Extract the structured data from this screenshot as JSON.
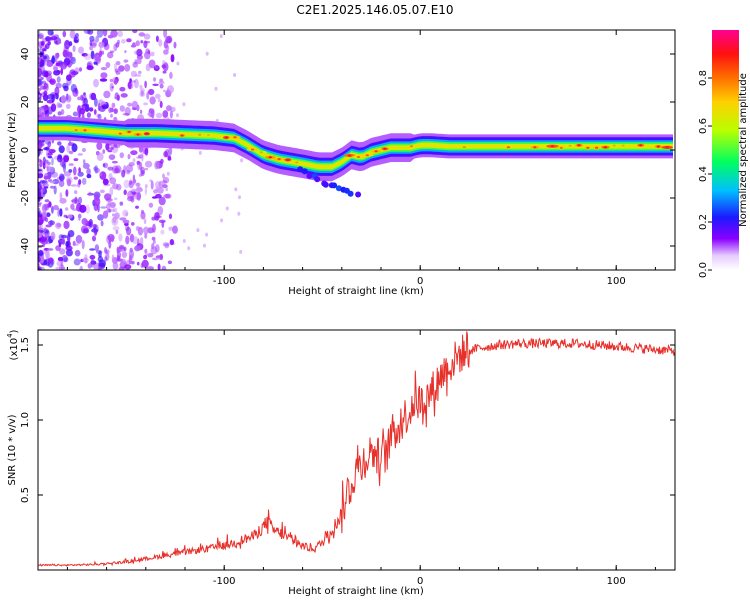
{
  "figure": {
    "title": "C2E1.2025.146.05.07.E10"
  },
  "chart_data": [
    {
      "type": "heatmap",
      "title": "C2E1.2025.146.05.07.E10",
      "xlabel": "Height of straight line (km)",
      "ylabel": "Frequency (Hz)",
      "xlim": [
        -195,
        130
      ],
      "ylim": [
        -50,
        50
      ],
      "xticks": [
        -100,
        0,
        100
      ],
      "yticks": [
        -40,
        -20,
        0,
        20,
        40
      ],
      "ridge": {
        "x": [
          -195,
          -180,
          -165,
          -150,
          -135,
          -120,
          -105,
          -95,
          -88,
          -80,
          -72,
          -65,
          -58,
          -52,
          -45,
          -40,
          -35,
          -30,
          -25,
          -20,
          -15,
          -10,
          -5,
          0,
          5,
          15,
          30,
          50,
          75,
          100,
          130
        ],
        "y": [
          9,
          9,
          8,
          7,
          7,
          6.5,
          6,
          5,
          2,
          -2,
          -4,
          -5,
          -6,
          -7,
          -7,
          -5,
          -2,
          -3,
          -1,
          0,
          1,
          1,
          1,
          2,
          2,
          1.5,
          1.5,
          1.5,
          1.5,
          1.5,
          1.5
        ]
      },
      "colorbar": {
        "label": "Normalized spectral amplitude",
        "range": [
          0,
          1
        ],
        "ticks": [
          0.0,
          0.2,
          0.4,
          0.6,
          0.8
        ],
        "tick_labels": [
          "0.0",
          "0.2",
          "0.4",
          "0.6",
          "0.8"
        ],
        "colormap": [
          "#ffffff",
          "#8a00ff",
          "#1a1aff",
          "#00bfff",
          "#00ff60",
          "#b8ff00",
          "#ffd000",
          "#ff7000",
          "#ff1010",
          "#ff0090"
        ]
      },
      "grid": false
    },
    {
      "type": "line",
      "xlabel": "Height of straight line (km)",
      "ylabel": "SNR (10 * v/v)",
      "y_multiplier": "(x10",
      "y_multiplier_exp": "4",
      "y_multiplier_close": ")",
      "xlim": [
        -195,
        130
      ],
      "ylim": [
        0,
        16000
      ],
      "xticks": [
        -100,
        0,
        100
      ],
      "yticks": [
        5000,
        10000,
        15000
      ],
      "ytick_labels": [
        "0.5",
        "1.0",
        "1.5"
      ],
      "color": "#e8302a",
      "x": [
        -195,
        -180,
        -165,
        -150,
        -140,
        -130,
        -120,
        -110,
        -100,
        -95,
        -90,
        -85,
        -80,
        -78,
        -75,
        -70,
        -65,
        -60,
        -55,
        -50,
        -45,
        -40,
        -37,
        -35,
        -33,
        -30,
        -28,
        -25,
        -22,
        -20,
        -17,
        -15,
        -12,
        -10,
        -8,
        -5,
        -3,
        0,
        3,
        5,
        8,
        10,
        15,
        20,
        25,
        30,
        40,
        50,
        60,
        70,
        80,
        90,
        100,
        110,
        120,
        130
      ],
      "y": [
        300,
        300,
        350,
        500,
        700,
        900,
        1100,
        1300,
        1500,
        1700,
        1900,
        2100,
        2700,
        3000,
        2500,
        2200,
        1800,
        1500,
        1300,
        1700,
        2500,
        3500,
        5200,
        5500,
        6500,
        7000,
        7300,
        7800,
        7500,
        7400,
        7700,
        8800,
        9400,
        9600,
        10100,
        10500,
        11100,
        11100,
        11300,
        11600,
        12200,
        12800,
        13500,
        14200,
        14600,
        14800,
        15000,
        15100,
        15100,
        15100,
        15100,
        15000,
        14900,
        14800,
        14700,
        14600
      ]
    }
  ]
}
